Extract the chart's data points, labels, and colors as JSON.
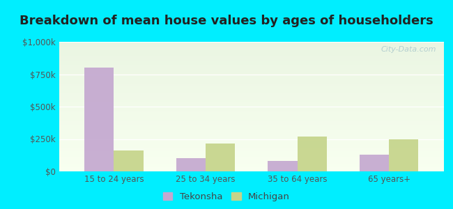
{
  "title": "Breakdown of mean house values by ages of householders",
  "categories": [
    "15 to 24 years",
    "25 to 34 years",
    "35 to 64 years",
    "65 years+"
  ],
  "tekonsha_values": [
    800000,
    100000,
    80000,
    130000
  ],
  "michigan_values": [
    160000,
    215000,
    270000,
    250000
  ],
  "tekonsha_color": "#c4a8d0",
  "michigan_color": "#c5d48a",
  "ylim": [
    0,
    1000000
  ],
  "yticks": [
    0,
    250000,
    500000,
    750000,
    1000000
  ],
  "ytick_labels": [
    "$0",
    "$250k",
    "$500k",
    "$750k",
    "$1,000k"
  ],
  "bar_width": 0.32,
  "bg_color_top": "#eaf5e2",
  "bg_color_bottom": "#f8fff0",
  "outer_background": "#00eeff",
  "grid_color": "#ffffff",
  "legend_labels": [
    "Tekonsha",
    "Michigan"
  ],
  "watermark": "City-Data.com",
  "title_fontsize": 13,
  "tick_fontsize": 8.5,
  "legend_fontsize": 9.5
}
